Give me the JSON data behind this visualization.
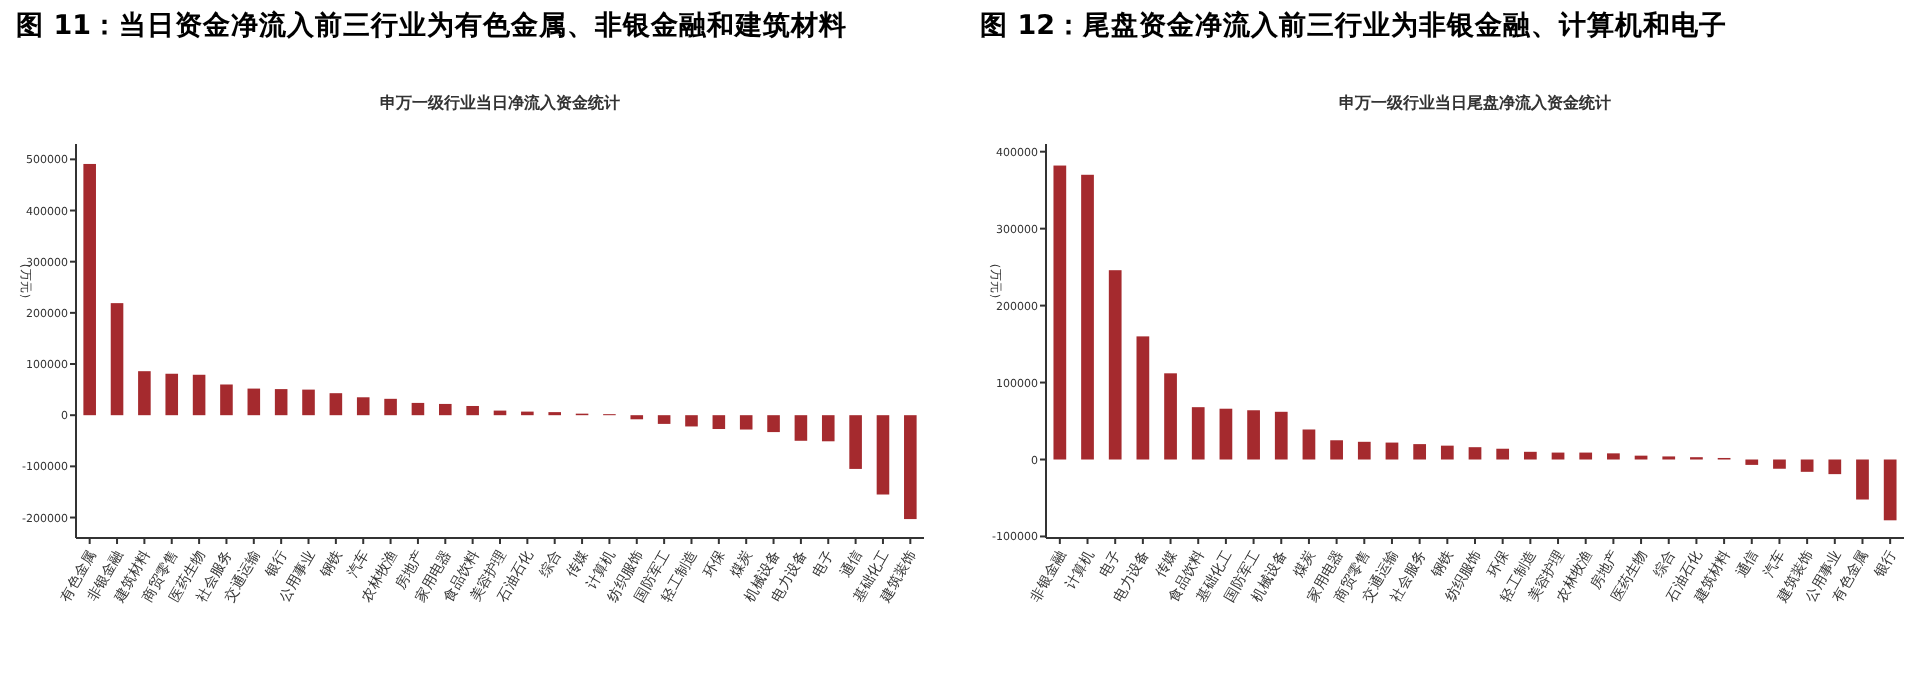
{
  "chart_data": [
    {
      "type": "bar",
      "title": "图 11：当日资金净流入前三行业为有色金属、非银金融和建筑材料",
      "subtitle": "申万一级行业当日净流入资金统计",
      "ylabel": "（万元）",
      "categories": [
        "有色金属",
        "非银金融",
        "建筑材料",
        "商贸零售",
        "医药生物",
        "社会服务",
        "交通运输",
        "银行",
        "公用事业",
        "钢铁",
        "汽车",
        "农林牧渔",
        "房地产",
        "家用电器",
        "食品饮料",
        "美容护理",
        "石油石化",
        "综合",
        "传媒",
        "计算机",
        "纺织服饰",
        "国防军工",
        "轻工制造",
        "环保",
        "煤炭",
        "机械设备",
        "电力设备",
        "电子",
        "通信",
        "基础化工",
        "建筑装饰"
      ],
      "values": [
        491000,
        219000,
        86000,
        81000,
        79000,
        60000,
        52000,
        51000,
        50000,
        43000,
        35000,
        32000,
        24000,
        22000,
        18000,
        9000,
        7000,
        6000,
        3000,
        2000,
        -8000,
        -17000,
        -22000,
        -27000,
        -28000,
        -33000,
        -50000,
        -51000,
        -105000,
        -155000,
        -203000
      ],
      "color": "#a52a2e",
      "ylim": [
        -240000,
        530000
      ],
      "yticks": [
        -200000,
        -100000,
        0,
        100000,
        200000,
        300000,
        400000,
        500000
      ],
      "grid": false
    },
    {
      "type": "bar",
      "title": "图 12：尾盘资金净流入前三行业为非银金融、计算机和电子",
      "subtitle": "申万一级行业当日尾盘净流入资金统计",
      "ylabel": "（万元）",
      "categories": [
        "非银金融",
        "计算机",
        "电子",
        "电力设备",
        "传媒",
        "食品饮料",
        "基础化工",
        "国防军工",
        "机械设备",
        "煤炭",
        "家用电器",
        "商贸零售",
        "交通运输",
        "社会服务",
        "钢铁",
        "纺织服饰",
        "环保",
        "轻工制造",
        "美容护理",
        "农林牧渔",
        "房地产",
        "医药生物",
        "综合",
        "石油石化",
        "建筑材料",
        "通信",
        "汽车",
        "建筑装饰",
        "公用事业",
        "有色金属",
        "银行"
      ],
      "values": [
        382000,
        370000,
        246000,
        160000,
        112000,
        68000,
        66000,
        64000,
        62000,
        39000,
        25000,
        23000,
        22000,
        20000,
        18000,
        16000,
        14000,
        10000,
        9000,
        9000,
        8000,
        5000,
        4000,
        3000,
        2000,
        -7000,
        -12000,
        -16000,
        -19000,
        -52000,
        -79000
      ],
      "color": "#a52a2e",
      "ylim": [
        -102000,
        410000
      ],
      "yticks": [
        -100000,
        0,
        100000,
        200000,
        300000,
        400000
      ],
      "grid": false
    }
  ]
}
